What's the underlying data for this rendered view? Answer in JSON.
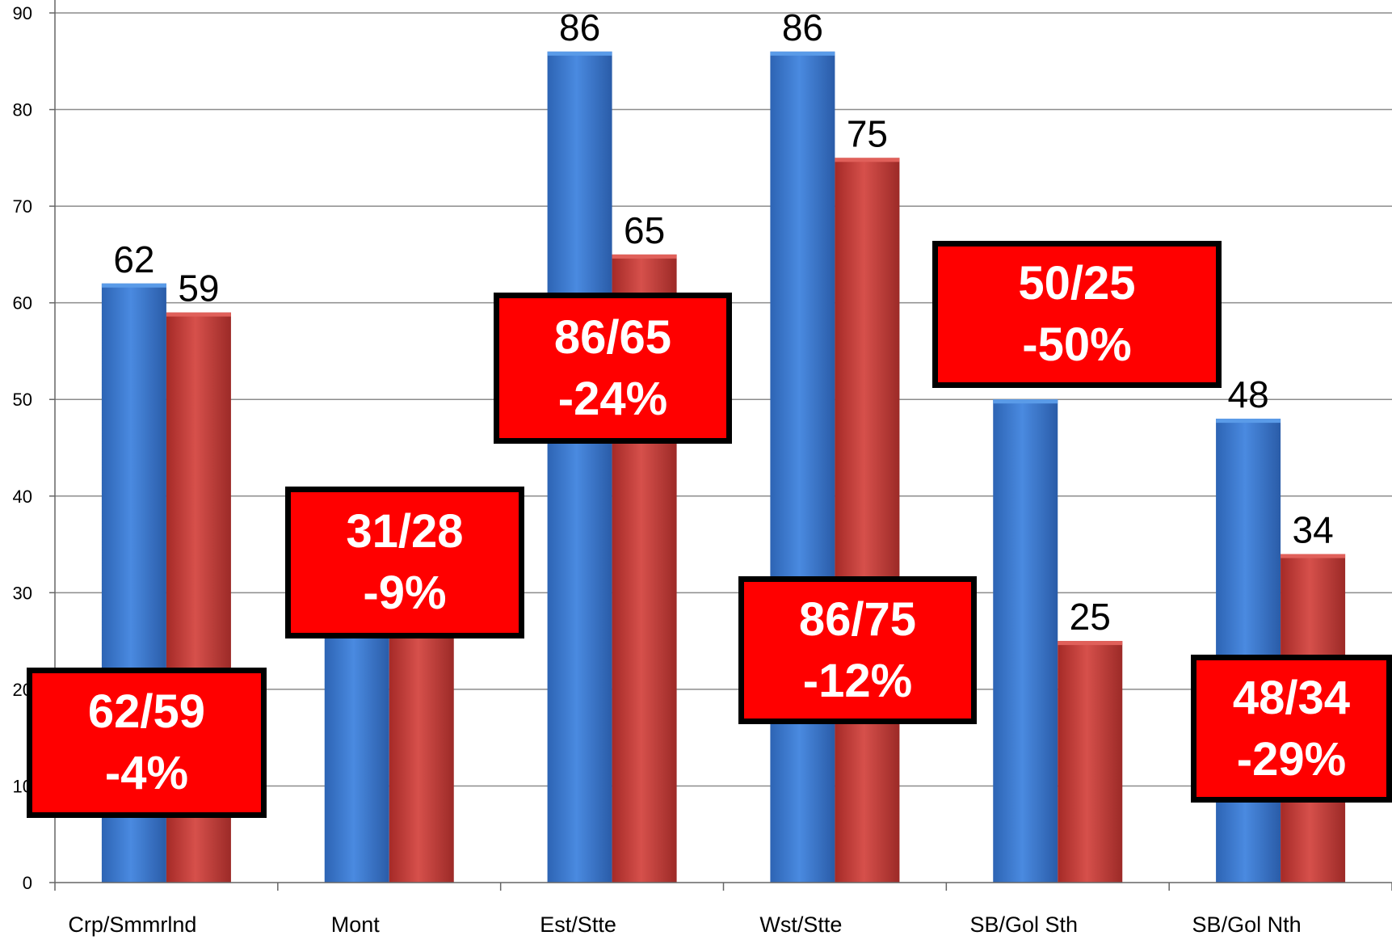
{
  "chart_data": {
    "type": "bar",
    "title": "",
    "xlabel": "",
    "ylabel": "",
    "ylim": [
      0,
      90
    ],
    "yticks": [
      "0",
      "10",
      "20",
      "30",
      "40",
      "50",
      "60",
      "70",
      "80",
      "90"
    ],
    "grid": true,
    "categories": [
      "Crp/Smmrlnd",
      "Mont",
      "Est/Stte",
      "Wst/Stte",
      "SB/Gol Sth",
      "SB/Gol Nth"
    ],
    "series": [
      {
        "color": "#3f7fd4",
        "values": [
          62,
          31,
          86,
          86,
          50,
          48
        ],
        "labels": [
          "62",
          "",
          "86",
          "86",
          "",
          "48"
        ]
      },
      {
        "color": "#c9413d",
        "values": [
          59,
          28,
          65,
          75,
          25,
          34
        ],
        "labels": [
          "59",
          "",
          "65",
          "75",
          "25",
          "34"
        ]
      }
    ],
    "annotations": [
      {
        "line1": "62/59",
        "line2": "-4%"
      },
      {
        "line1": "31/28",
        "line2": "-9%"
      },
      {
        "line1": "86/65",
        "line2": "-24%"
      },
      {
        "line1": "86/75",
        "line2": "-12%"
      },
      {
        "line1": "50/25",
        "line2": "-50%"
      },
      {
        "line1": "48/34",
        "line2": "-29%"
      }
    ]
  }
}
